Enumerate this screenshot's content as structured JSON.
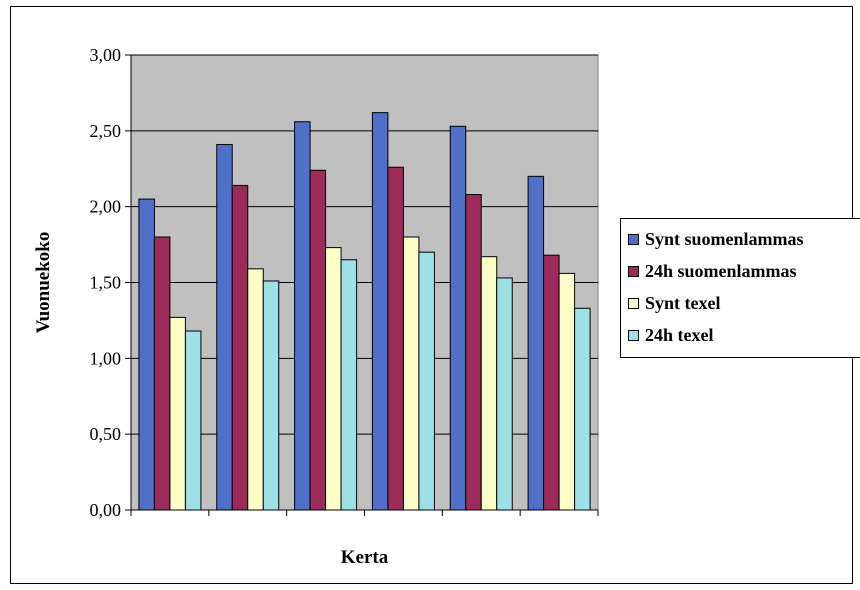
{
  "chart_data": {
    "type": "bar",
    "title": "",
    "xlabel": "Kerta",
    "ylabel": "Vuonuekoko",
    "ylim": [
      0,
      3
    ],
    "yticks": [
      "0,00",
      "0,50",
      "1,00",
      "1,50",
      "2,00",
      "2,50",
      "3,00"
    ],
    "ytick_values": [
      0,
      0.5,
      1,
      1.5,
      2,
      2.5,
      3
    ],
    "categories": [
      "",
      "",
      "",
      "",
      "",
      ""
    ],
    "grid": true,
    "plot_background": "#C0C0C0",
    "legend_position": "right",
    "series": [
      {
        "name": "Synt suomenlammas",
        "color": "#4F6FC8",
        "values": [
          2.05,
          2.41,
          2.56,
          2.62,
          2.53,
          2.2
        ]
      },
      {
        "name": "24h suomenlammas",
        "color": "#9C2B5A",
        "values": [
          1.8,
          2.14,
          2.24,
          2.26,
          2.08,
          1.68
        ]
      },
      {
        "name": "Synt texel",
        "color": "#FFFFC8",
        "values": [
          1.27,
          1.59,
          1.73,
          1.8,
          1.67,
          1.56
        ]
      },
      {
        "name": "24h texel",
        "color": "#9EE0E8",
        "values": [
          1.18,
          1.51,
          1.65,
          1.7,
          1.53,
          1.33
        ]
      }
    ]
  }
}
